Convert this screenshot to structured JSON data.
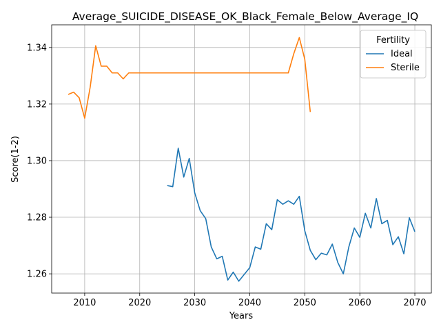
{
  "chart_data": {
    "type": "line",
    "title": "Average_SUICIDE_DISEASE_OK_Black_Female_Below_Average_IQ",
    "xlabel": "Years",
    "ylabel": "Score(1-2)",
    "xlim": [
      2004,
      2073
    ],
    "ylim": [
      1.2532,
      1.348
    ],
    "xticks": [
      2010,
      2020,
      2030,
      2040,
      2050,
      2060,
      2070
    ],
    "yticks": [
      1.26,
      1.28,
      1.3,
      1.32,
      1.34
    ],
    "ytick_labels": [
      "1.26",
      "1.28",
      "1.30",
      "1.32",
      "1.34"
    ],
    "grid": true,
    "legend": {
      "title": "Fertility",
      "placement": "top-right"
    },
    "series": [
      {
        "name": "Ideal",
        "color": "#1f77b4",
        "x": [
          2025,
          2026,
          2027,
          2028,
          2029,
          2030,
          2031,
          2032,
          2033,
          2034,
          2035,
          2036,
          2037,
          2038,
          2039,
          2040,
          2041,
          2042,
          2043,
          2044,
          2045,
          2046,
          2047,
          2048,
          2049,
          2050,
          2051,
          2052,
          2053,
          2054,
          2055,
          2056,
          2057,
          2058,
          2059,
          2060,
          2061,
          2062,
          2063,
          2064,
          2065,
          2066,
          2067,
          2068,
          2069,
          2070
        ],
        "y": [
          1.2912,
          1.2908,
          1.3044,
          1.2942,
          1.3008,
          1.2886,
          1.2823,
          1.2795,
          1.2695,
          1.2653,
          1.2662,
          1.2578,
          1.2606,
          1.2574,
          1.2598,
          1.2622,
          1.2695,
          1.2687,
          1.2777,
          1.2756,
          1.2862,
          1.2846,
          1.2858,
          1.2846,
          1.2874,
          1.2752,
          1.2683,
          1.265,
          1.2673,
          1.2667,
          1.2705,
          1.264,
          1.26,
          1.2695,
          1.2762,
          1.2729,
          1.2814,
          1.2762,
          1.2866,
          1.2777,
          1.2789,
          1.2703,
          1.2731,
          1.2671,
          1.2798,
          1.2749
        ]
      },
      {
        "name": "Sterile",
        "color": "#ff7f0e",
        "x": [
          2007,
          2008,
          2009,
          2010,
          2011,
          2012,
          2013,
          2014,
          2015,
          2016,
          2017,
          2018,
          2019,
          2020,
          2021,
          2022,
          2023,
          2024,
          2025,
          2026,
          2027,
          2028,
          2029,
          2030,
          2031,
          2032,
          2033,
          2034,
          2035,
          2036,
          2037,
          2038,
          2039,
          2040,
          2041,
          2042,
          2043,
          2044,
          2045,
          2046,
          2047,
          2048,
          2049,
          2050,
          2051
        ],
        "y": [
          1.3234,
          1.3242,
          1.3222,
          1.315,
          1.326,
          1.3406,
          1.3334,
          1.3334,
          1.331,
          1.331,
          1.3289,
          1.331,
          1.331,
          1.331,
          1.331,
          1.331,
          1.331,
          1.331,
          1.331,
          1.331,
          1.331,
          1.331,
          1.331,
          1.331,
          1.331,
          1.331,
          1.331,
          1.331,
          1.331,
          1.331,
          1.331,
          1.331,
          1.331,
          1.331,
          1.331,
          1.331,
          1.331,
          1.331,
          1.331,
          1.331,
          1.331,
          1.3378,
          1.3435,
          1.3358,
          1.3172
        ]
      }
    ]
  }
}
